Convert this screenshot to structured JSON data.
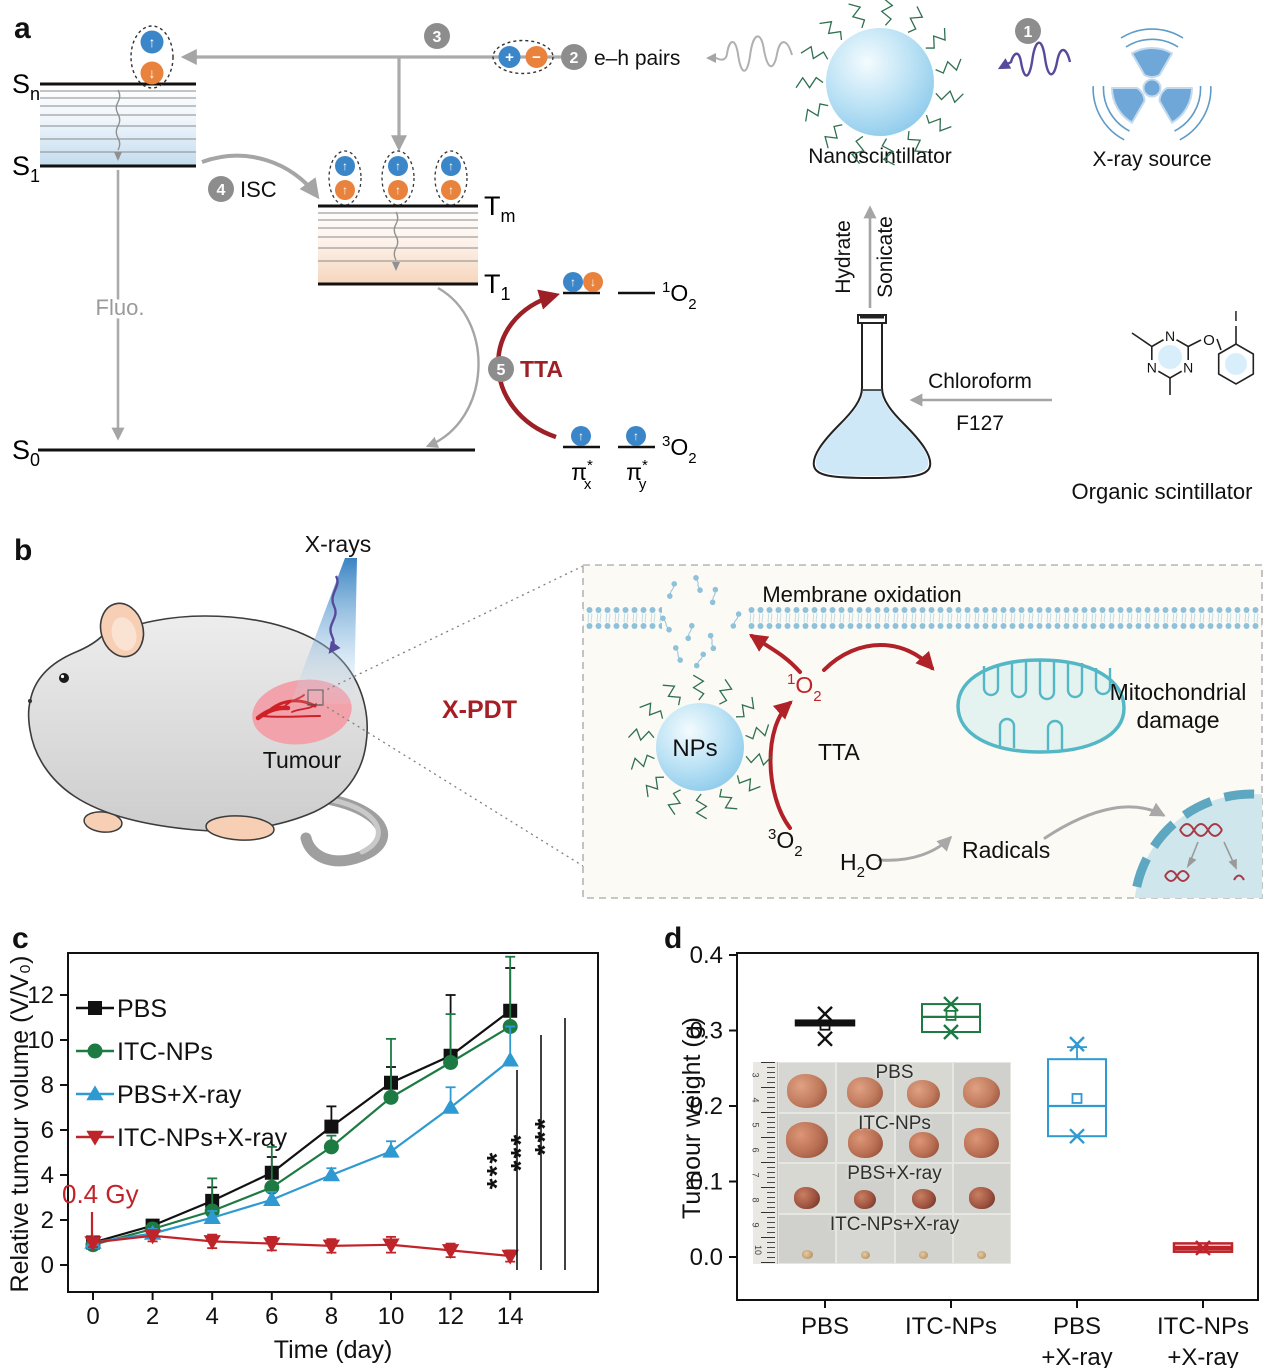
{
  "figure": {
    "a": "a",
    "b": "b",
    "c": "c",
    "d": "d"
  },
  "colors": {
    "crimson": "#c0242b",
    "dark_red": "#9c2026",
    "green": "#1e7a43",
    "blue": "#2f9ad2",
    "black": "#111111",
    "gray_arrow": "#a5a5a5",
    "purple": "#584a9b",
    "np_blue": "#8cc9ec",
    "membrane_blue": "#8fc2da",
    "trefoil_blue": "#6fa8d8"
  },
  "panel_a": {
    "sn_base": "S",
    "sn_sub": "n",
    "s1_base": "S",
    "s1_sub": "1",
    "s0_base": "S",
    "s0_sub": "0",
    "tm_base": "T",
    "tm_sub": "m",
    "t1_base": "T",
    "t1_sub": "1",
    "fluo": "Fluo.",
    "isc": "ISC",
    "tta": "TTA",
    "step1": "1",
    "step2": "2",
    "step3": "3",
    "step4": "4",
    "step5": "5",
    "eh_pairs": "e–h pairs",
    "plus": "+",
    "minus": "−",
    "nanoscintillator": "Nanoscintillator",
    "xray_source": "X-ray source",
    "hydrate": "Hydrate",
    "sonicate": "Sonicate",
    "chloroform": "Chloroform",
    "f127": "F127",
    "organic_scintillator": "Organic scintillator",
    "singlet_sup": "1",
    "triplet_sup": "3",
    "o2_base": "O",
    "o2_sub": "2",
    "pi": "π",
    "star": "*",
    "pi_x_sub": "x",
    "pi_y_sub": "y",
    "n_atom": "N",
    "o_atom": "O",
    "i_atom": "I"
  },
  "panel_b": {
    "xrays": "X-rays",
    "tumour": "Tumour",
    "xpdt": "X-PDT",
    "membrane_oxidation": "Membrane oxidation",
    "nps": "NPs",
    "tta": "TTA",
    "radicals": "Radicals",
    "mito_line1": "Mitochondrial",
    "mito_line2": "damage",
    "singlet_sup": "1",
    "triplet_sup": "3",
    "o2_base": "O",
    "o2_sub": "2",
    "h2o_h": "H",
    "h2o_sub": "2",
    "h2o_o": "O"
  },
  "chart_data": [
    {
      "panel": "c",
      "type": "line",
      "title": "",
      "xlabel": "Time (day)",
      "ylabel": "Relative tumour volume (V/V₀)",
      "x": [
        0,
        2,
        4,
        6,
        8,
        10,
        12,
        14
      ],
      "xticks": [
        0,
        2,
        4,
        6,
        8,
        10,
        12,
        14
      ],
      "yticks": [
        0,
        2,
        4,
        6,
        8,
        10,
        12
      ],
      "xlim": [
        -0.9,
        17.2
      ],
      "ylim": [
        -1.2,
        13.9
      ],
      "grid": false,
      "legend_position": "upper-left-inside",
      "annotation": {
        "text": "0.4 Gy",
        "x": 0,
        "color": "#c0242b"
      },
      "series": [
        {
          "name": "PBS",
          "color": "#111111",
          "marker": "square",
          "values": [
            1.0,
            1.75,
            2.85,
            4.1,
            6.15,
            8.1,
            9.3,
            11.3
          ],
          "err": [
            0.12,
            0.2,
            0.6,
            0.7,
            0.9,
            0.7,
            2.7,
            1.9
          ],
          "err_dir": "up"
        },
        {
          "name": "ITC-NPs",
          "color": "#1e7a43",
          "marker": "circle",
          "values": [
            0.9,
            1.6,
            2.4,
            3.45,
            5.25,
            7.45,
            9.0,
            10.6
          ],
          "err": [
            0.12,
            0.25,
            1.45,
            1.8,
            0.5,
            2.6,
            2.15,
            3.1
          ],
          "err_dir": "up"
        },
        {
          "name": "PBS+X-ray",
          "color": "#2f9ad2",
          "marker": "triangle-up",
          "values": [
            1.0,
            1.4,
            2.1,
            2.9,
            4.0,
            5.05,
            7.0,
            9.1
          ],
          "err": [
            0.15,
            0.2,
            0.3,
            0.35,
            0.3,
            0.45,
            0.9,
            1.5
          ],
          "err_dir": "up"
        },
        {
          "name": "ITC-NPs+X-ray",
          "color": "#c0242b",
          "marker": "triangle-down",
          "values": [
            1.0,
            1.3,
            1.05,
            0.95,
            0.85,
            0.9,
            0.65,
            0.4
          ],
          "err": [
            0.2,
            0.25,
            0.3,
            0.3,
            0.3,
            0.35,
            0.3,
            0.25
          ],
          "err_dir": "both"
        }
      ],
      "significance": [
        {
          "label": "***"
        },
        {
          "label": "***"
        },
        {
          "label": "***"
        }
      ]
    },
    {
      "panel": "d",
      "type": "box",
      "ylabel": "Tumour weight (g)",
      "yticks": [
        "0.0",
        "0.1",
        "0.2",
        "0.3",
        "0.4"
      ],
      "ylim": [
        -0.045,
        0.4
      ],
      "categories": [
        [
          "PBS"
        ],
        [
          "ITC-NPs"
        ],
        [
          "PBS",
          "+X-ray"
        ],
        [
          "ITC-NPs",
          "+X-ray"
        ]
      ],
      "boxes": [
        {
          "name": "PBS",
          "color": "#111111",
          "q1": 0.307,
          "q3": 0.313,
          "median": 0.31,
          "mean": 0.307,
          "whisker_high": null,
          "points": [
            0.322,
            0.289
          ]
        },
        {
          "name": "ITC-NPs",
          "color": "#1e7a43",
          "q1": 0.298,
          "q3": 0.335,
          "median": 0.318,
          "mean": 0.32,
          "whisker_high": null,
          "points": [
            0.335,
            0.298
          ]
        },
        {
          "name": "PBS+X-ray",
          "color": "#2f9ad2",
          "q1": 0.16,
          "q3": 0.262,
          "median": 0.2,
          "mean": 0.21,
          "whisker_high": 0.278,
          "points": [
            0.282,
            0.16
          ]
        },
        {
          "name": "ITC-NPs+X-ray",
          "color": "#c0242b",
          "q1": 0.007,
          "q3": 0.018,
          "median": 0.012,
          "mean": 0.012,
          "whisker_high": null,
          "points": [
            0.012
          ]
        }
      ],
      "inset": {
        "rows": [
          "PBS",
          "ITC-NPs",
          "PBS+X-ray",
          "ITC-NPs+X-ray"
        ],
        "ruler_numbers": [
          "3",
          "4",
          "5",
          "6",
          "7",
          "8",
          "9",
          "10"
        ]
      }
    }
  ]
}
